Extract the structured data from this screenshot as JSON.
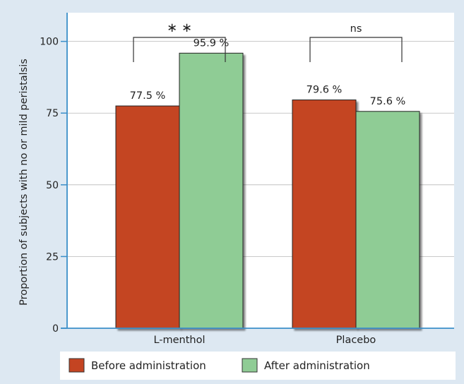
{
  "chart_data": {
    "type": "bar",
    "ylabel": "Proportion of subjects with no or mild peristalsis",
    "ylim": [
      0,
      110
    ],
    "yticks": [
      0,
      25,
      50,
      75,
      100
    ],
    "categories": [
      "L-menthol",
      "Placebo"
    ],
    "series": [
      {
        "name": "Before administration",
        "color": "#c44422",
        "values": [
          77.5,
          79.6
        ],
        "labels": [
          "77.5 %",
          "79.6 %"
        ]
      },
      {
        "name": "After administration",
        "color": "#8fcc95",
        "values": [
          95.9,
          75.6
        ],
        "labels": [
          "95.9 %",
          "75.6 %"
        ]
      }
    ],
    "significance": [
      "∗ ∗",
      "ns"
    ],
    "grid": true,
    "legend_position": "bottom"
  }
}
